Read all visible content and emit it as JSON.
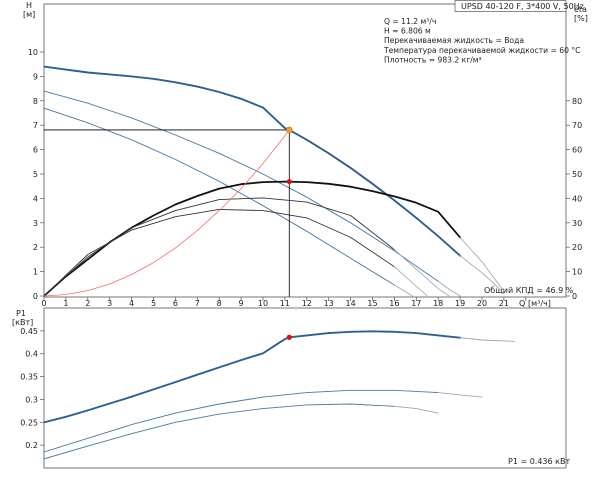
{
  "chart_data": [
    {
      "type": "line",
      "title": "UPSD 40-120 F, 3*400 V, 50Hz",
      "ylabel": "H",
      "ylabel_unit": "[м]",
      "y2label": "eta",
      "y2label_unit": "[%]",
      "xlabel": "Q",
      "xlabel_unit": "[м³/ч]",
      "xlim": [
        0,
        23
      ],
      "ylim": [
        0,
        11
      ],
      "y2lim": [
        0,
        110
      ],
      "x_ticks": [
        0,
        1,
        2,
        3,
        4,
        5,
        6,
        7,
        8,
        9,
        10,
        11,
        12,
        13,
        14,
        15,
        16,
        17,
        18,
        19,
        20,
        21,
        22
      ],
      "y_ticks": [
        0,
        1,
        2,
        3,
        4,
        5,
        6,
        7,
        8,
        9,
        10
      ],
      "y2_ticks": [
        0,
        10,
        20,
        30,
        40,
        50,
        60,
        70,
        80
      ],
      "grid": false,
      "info_lines": [
        "Q = 11.2 м³/ч",
        "H = 6.806 м",
        "Перекачиваемая жидкость = Вода",
        "Температура перекачиваемой жидкости = 60 °C",
        "Плотность = 983.2 кг/м³"
      ],
      "efficiency_label": "Общий КПД = 46.9 %",
      "duty_point": {
        "Q": 11.2,
        "H": 6.806,
        "eta": 46.9
      },
      "series": [
        {
          "axis": "H",
          "color": "#2f5f8f",
          "width": 1.9,
          "x": [
            0,
            1,
            2,
            3,
            4,
            5,
            6,
            7,
            8,
            9,
            10,
            11,
            11.2,
            12,
            13,
            14,
            15,
            16,
            17,
            18,
            19
          ],
          "y": [
            9.4,
            9.28,
            9.16,
            9.08,
            9.0,
            8.9,
            8.76,
            8.58,
            8.36,
            8.08,
            7.72,
            6.88,
            6.806,
            6.4,
            5.85,
            5.25,
            4.6,
            3.92,
            3.2,
            2.45,
            1.65
          ]
        },
        {
          "axis": "H",
          "color": "#9aa6b2",
          "width": 0.9,
          "x": [
            19,
            19.5,
            20,
            20.5,
            21
          ],
          "y": [
            1.65,
            1.3,
            0.95,
            0.55,
            0.1
          ]
        },
        {
          "axis": "H",
          "color": "#4a78a8",
          "width": 0.9,
          "x": [
            0,
            2,
            4,
            6,
            8,
            10,
            12,
            14,
            16,
            18
          ],
          "y": [
            8.4,
            7.9,
            7.3,
            6.6,
            5.85,
            5.0,
            4.05,
            3.0,
            1.85,
            0.6
          ]
        },
        {
          "axis": "H",
          "color": "#9aa6b2",
          "width": 0.9,
          "x": [
            18,
            18.5,
            19,
            19.5,
            20
          ],
          "y": [
            0.6,
            0.28,
            0.0,
            -0.3,
            -0.6
          ]
        },
        {
          "axis": "H",
          "color": "#4a78a8",
          "width": 0.9,
          "x": [
            0,
            2,
            4,
            6,
            8,
            10,
            12,
            14,
            16
          ],
          "y": [
            7.7,
            7.1,
            6.4,
            5.6,
            4.7,
            3.7,
            2.65,
            1.55,
            0.45
          ]
        },
        {
          "axis": "H",
          "color": "#9aa6b2",
          "width": 0.9,
          "x": [
            16,
            16.5,
            17,
            17.5
          ],
          "y": [
            0.45,
            0.18,
            -0.1,
            -0.4
          ]
        },
        {
          "axis": "eta",
          "color": "#111111",
          "width": 1.8,
          "x": [
            0,
            1,
            2,
            3,
            4,
            5,
            6,
            7,
            8,
            9,
            10,
            11,
            12,
            13,
            14,
            15,
            16,
            17,
            18,
            19
          ],
          "y": [
            0,
            8,
            15,
            22,
            28,
            33,
            37.5,
            41,
            44,
            45.8,
            46.7,
            46.9,
            46.7,
            46,
            44.8,
            43,
            40.8,
            38.2,
            34.5,
            24
          ]
        },
        {
          "axis": "eta",
          "color": "#9aa6b2",
          "width": 0.8,
          "x": [
            19,
            19.5,
            20,
            20.5,
            21
          ],
          "y": [
            24,
            19,
            14,
            8,
            2
          ]
        },
        {
          "axis": "eta",
          "color": "#333333",
          "width": 0.9,
          "x": [
            0,
            2,
            4,
            6,
            8,
            10,
            12,
            14,
            16
          ],
          "y": [
            0,
            16,
            28,
            35,
            39.5,
            40.2,
            38.5,
            33,
            19
          ]
        },
        {
          "axis": "eta",
          "color": "#9aa6b2",
          "width": 0.8,
          "x": [
            16,
            16.5,
            17,
            17.5,
            18,
            18.5
          ],
          "y": [
            19,
            15,
            11,
            7,
            3,
            0
          ]
        },
        {
          "axis": "eta",
          "color": "#333333",
          "width": 0.9,
          "x": [
            0,
            2,
            4,
            6,
            8,
            10,
            12,
            14,
            16
          ],
          "y": [
            0,
            17,
            27,
            32.5,
            35.5,
            35,
            32,
            24,
            12
          ]
        },
        {
          "axis": "eta",
          "color": "#9aa6b2",
          "width": 0.8,
          "x": [
            16,
            16.5,
            17,
            17.5
          ],
          "y": [
            12,
            8,
            4,
            0
          ]
        },
        {
          "axis": "H",
          "color": "#ff6a6a",
          "width": 0.8,
          "x": [
            0,
            1,
            2,
            3,
            4,
            5,
            6,
            7,
            8,
            9,
            10,
            11,
            11.2
          ],
          "y": [
            0,
            0.06,
            0.22,
            0.49,
            0.88,
            1.37,
            1.97,
            2.68,
            3.5,
            4.4,
            5.43,
            6.57,
            6.806
          ]
        }
      ]
    },
    {
      "type": "line",
      "ylabel": "P1",
      "ylabel_unit": "[кВт]",
      "xlim": [
        0,
        23
      ],
      "ylim": [
        0.15,
        0.5
      ],
      "y_ticks": [
        0.2,
        0.25,
        0.3,
        0.35,
        0.4,
        0.45
      ],
      "grid": false,
      "power_label": "P1 = 0.436 кВт",
      "duty_point": {
        "Q": 11.2,
        "P1": 0.436
      },
      "series": [
        {
          "axis": "P1",
          "color": "#2f5f8f",
          "width": 1.9,
          "x": [
            0,
            1,
            2,
            3,
            4,
            5,
            6,
            7,
            8,
            9,
            10,
            11,
            11.2,
            12,
            13,
            14,
            15,
            16,
            17,
            18,
            19
          ],
          "y": [
            0.25,
            0.262,
            0.276,
            0.291,
            0.306,
            0.322,
            0.338,
            0.354,
            0.37,
            0.386,
            0.401,
            0.432,
            0.436,
            0.44,
            0.445,
            0.448,
            0.449,
            0.448,
            0.445,
            0.44,
            0.435
          ]
        },
        {
          "axis": "P1",
          "color": "#9aa6b2",
          "width": 0.9,
          "x": [
            19,
            20,
            21,
            21.5
          ],
          "y": [
            0.435,
            0.43,
            0.428,
            0.427
          ]
        },
        {
          "axis": "P1",
          "color": "#4a78a8",
          "width": 0.9,
          "x": [
            0,
            2,
            4,
            6,
            8,
            10,
            12,
            14,
            16,
            18
          ],
          "y": [
            0.185,
            0.215,
            0.245,
            0.27,
            0.29,
            0.305,
            0.315,
            0.32,
            0.32,
            0.315
          ]
        },
        {
          "axis": "P1",
          "color": "#9aa6b2",
          "width": 0.9,
          "x": [
            18,
            19,
            20
          ],
          "y": [
            0.315,
            0.31,
            0.305
          ]
        },
        {
          "axis": "P1",
          "color": "#4a78a8",
          "width": 0.9,
          "x": [
            0,
            2,
            4,
            6,
            8,
            10,
            12,
            14,
            16
          ],
          "y": [
            0.17,
            0.198,
            0.225,
            0.25,
            0.268,
            0.28,
            0.288,
            0.29,
            0.285
          ]
        },
        {
          "axis": "P1",
          "color": "#9aa6b2",
          "width": 0.9,
          "x": [
            16,
            17,
            18
          ],
          "y": [
            0.285,
            0.28,
            0.27
          ]
        }
      ]
    }
  ]
}
